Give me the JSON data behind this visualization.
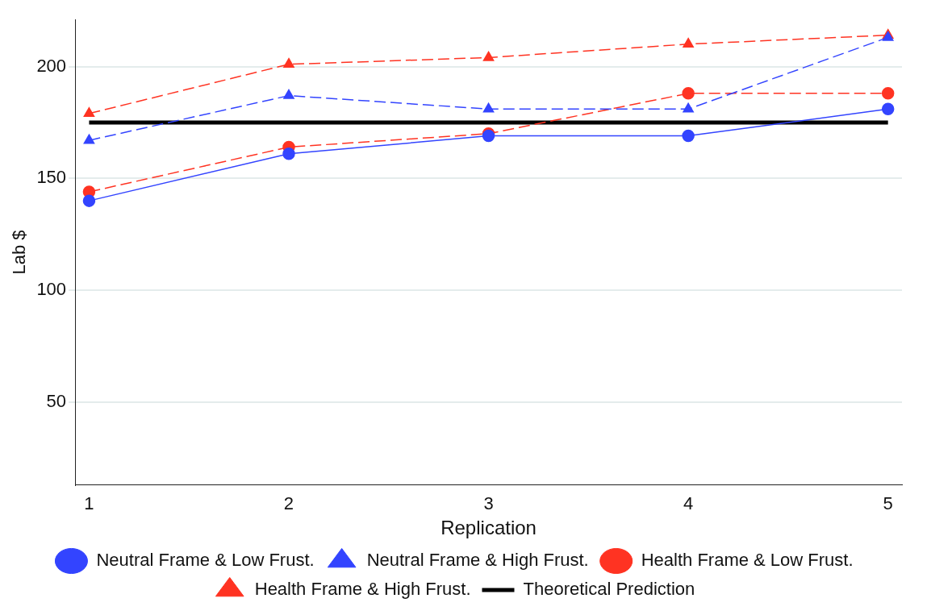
{
  "chart_data": {
    "type": "line",
    "xlabel": "Replication",
    "ylabel": "Lab $",
    "x": [
      1,
      2,
      3,
      4,
      5
    ],
    "xlim": [
      0.93,
      5.07
    ],
    "xticks": [
      1,
      2,
      3,
      4,
      5
    ],
    "ylim": [
      13,
      221
    ],
    "yticks": [
      50,
      100,
      150,
      200
    ],
    "grid": "y",
    "legend": "bottom",
    "series": [
      {
        "name": "Neutral Frame & Low Frust.",
        "color": "#3344ff",
        "values": [
          140,
          161,
          169,
          169,
          181
        ],
        "marker": "circle",
        "line_style": "solid"
      },
      {
        "name": "Neutral Frame & High Frust.",
        "color": "#3344ff",
        "values": [
          167,
          187,
          181,
          181,
          213
        ],
        "marker": "triangle",
        "line_style": "dashed"
      },
      {
        "name": "Health Frame & Low Frust.",
        "color": "#ff3322",
        "values": [
          144,
          164,
          170,
          188,
          188
        ],
        "marker": "circle",
        "line_style": "dashed"
      },
      {
        "name": "Health Frame & High Frust.",
        "color": "#ff3322",
        "values": [
          179,
          201,
          204,
          210,
          214
        ],
        "marker": "triangle",
        "line_style": "dashed"
      },
      {
        "name": "Theoretical Prediction",
        "color": "#000000",
        "x": [
          1,
          5
        ],
        "values": [
          175,
          175
        ],
        "marker": "none",
        "line_style": "solid"
      }
    ]
  }
}
